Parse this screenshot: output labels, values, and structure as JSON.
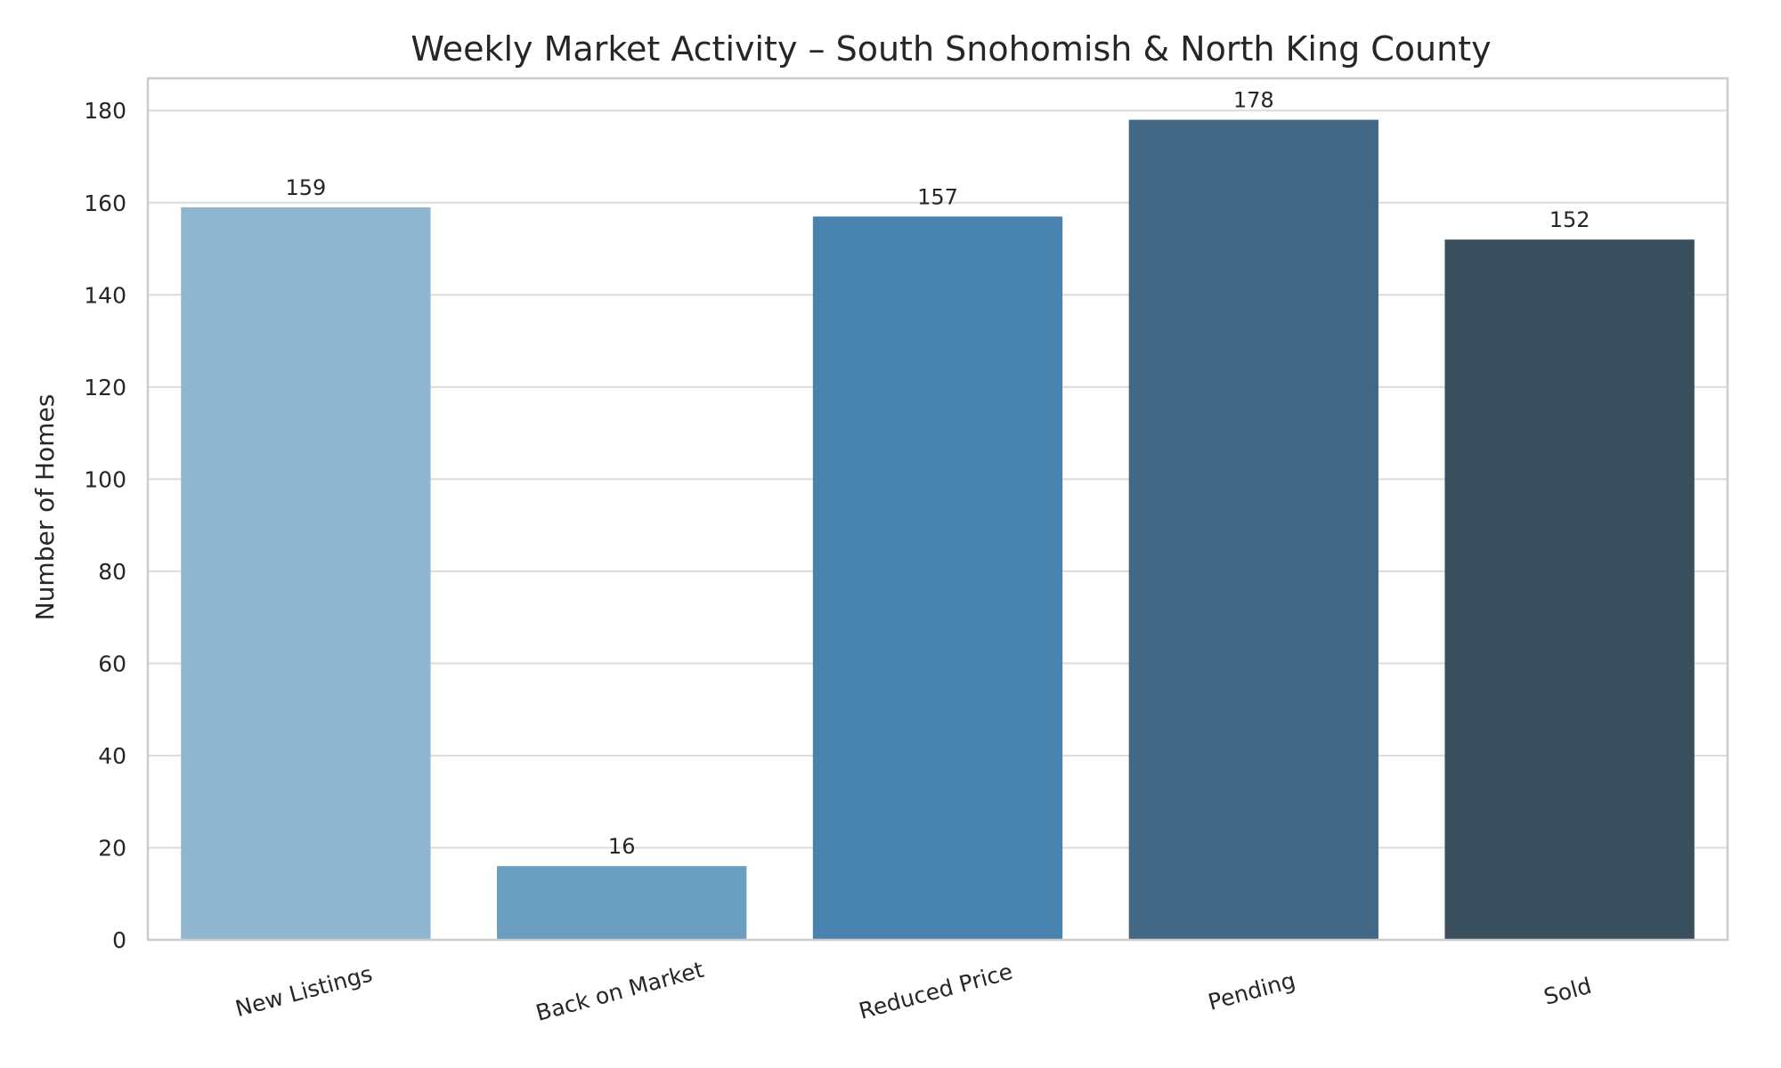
{
  "chart_data": {
    "type": "bar",
    "title": "Weekly Market Activity – South Snohomish & North King County",
    "xlabel": "",
    "ylabel": "Number of Homes",
    "categories": [
      "New Listings",
      "Back on Market",
      "Reduced Price",
      "Pending",
      "Sold"
    ],
    "values": [
      159,
      16,
      157,
      178,
      152
    ],
    "data_labels": [
      "159",
      "16",
      "157",
      "178",
      "152"
    ],
    "colors": [
      "#8fb5d0",
      "#6a9ec0",
      "#4883af",
      "#426885",
      "#3a4f5e"
    ],
    "ylim": [
      0,
      187
    ],
    "yticks": [
      0,
      20,
      40,
      60,
      80,
      100,
      120,
      140,
      160,
      180
    ],
    "grid": "horizontal",
    "legend": "none",
    "xtick_rotation": -15
  }
}
